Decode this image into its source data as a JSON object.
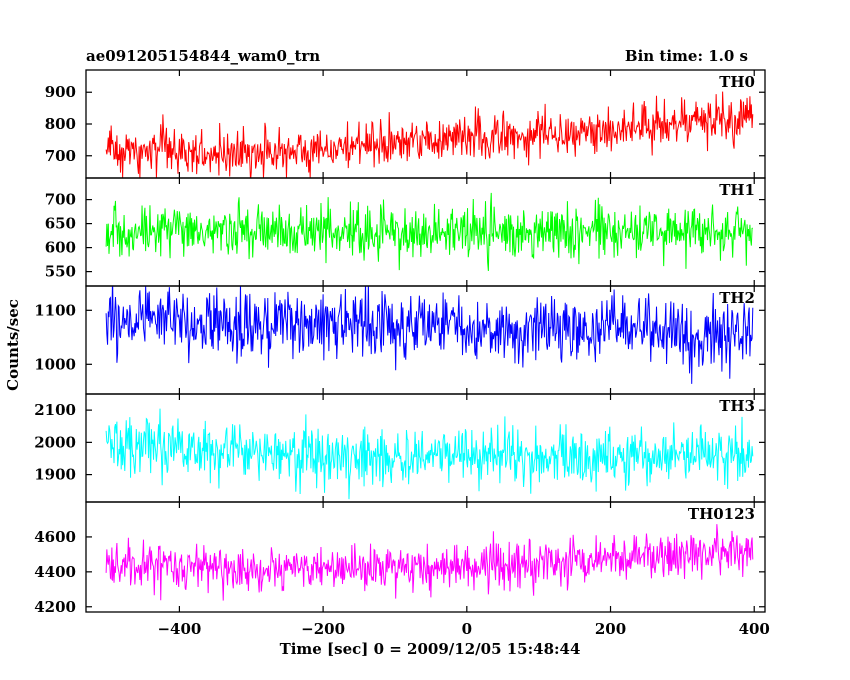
{
  "header": {
    "title": "ae091205154844_wam0_trn",
    "bin_time": "Bin time: 1.0 s"
  },
  "chart_data": {
    "type": "line",
    "xlabel": "Time [sec] 0 = 2009/12/05 15:48:44",
    "ylabel": "Counts/sec",
    "xlim": [
      -530,
      415
    ],
    "x_ticks": [
      -400,
      -200,
      0,
      200,
      400
    ],
    "x_tick_labels": [
      "−400",
      "−200",
      "0",
      "200",
      "400"
    ],
    "time_range": [
      -502,
      398
    ],
    "bin_time_sec": 1.0,
    "grid": false,
    "panels": [
      {
        "name": "TH0",
        "color": "#ff0000",
        "ylim": [
          630,
          970
        ],
        "ticks": [
          700,
          800,
          900
        ],
        "tick_labels": [
          "700",
          "800",
          "900"
        ],
        "trend": [
          [
            -500,
            720
          ],
          [
            -300,
            705
          ],
          [
            -100,
            740
          ],
          [
            100,
            770
          ],
          [
            398,
            820
          ]
        ],
        "scatter_sd": 35
      },
      {
        "name": "TH1",
        "color": "#00ff00",
        "ylim": [
          520,
          745
        ],
        "ticks": [
          550,
          600,
          650,
          700
        ],
        "tick_labels": [
          "550",
          "600",
          "650",
          "700"
        ],
        "trend": [
          [
            -500,
            630
          ],
          [
            398,
            635
          ]
        ],
        "scatter_sd": 27
      },
      {
        "name": "TH2",
        "color": "#0000ff",
        "ylim": [
          945,
          1145
        ],
        "ticks": [
          1000,
          1100
        ],
        "tick_labels": [
          "1000",
          "1100"
        ],
        "trend": [
          [
            -500,
            1080
          ],
          [
            398,
            1060
          ]
        ],
        "scatter_sd": 30
      },
      {
        "name": "TH3",
        "color": "#00ffff",
        "ylim": [
          1815,
          2150
        ],
        "ticks": [
          1900,
          2000,
          2100
        ],
        "tick_labels": [
          "1900",
          "2000",
          "2100"
        ],
        "trend": [
          [
            -500,
            1990
          ],
          [
            -200,
            1960
          ],
          [
            0,
            1955
          ],
          [
            398,
            1960
          ]
        ],
        "scatter_sd": 45
      },
      {
        "name": "TH0123",
        "color": "#ff00ff",
        "ylim": [
          4170,
          4800
        ],
        "ticks": [
          4200,
          4400,
          4600
        ],
        "tick_labels": [
          "4200",
          "4400",
          "4600"
        ],
        "trend": [
          [
            -500,
            4440
          ],
          [
            -200,
            4410
          ],
          [
            100,
            4440
          ],
          [
            398,
            4530
          ]
        ],
        "scatter_sd": 65
      }
    ]
  }
}
